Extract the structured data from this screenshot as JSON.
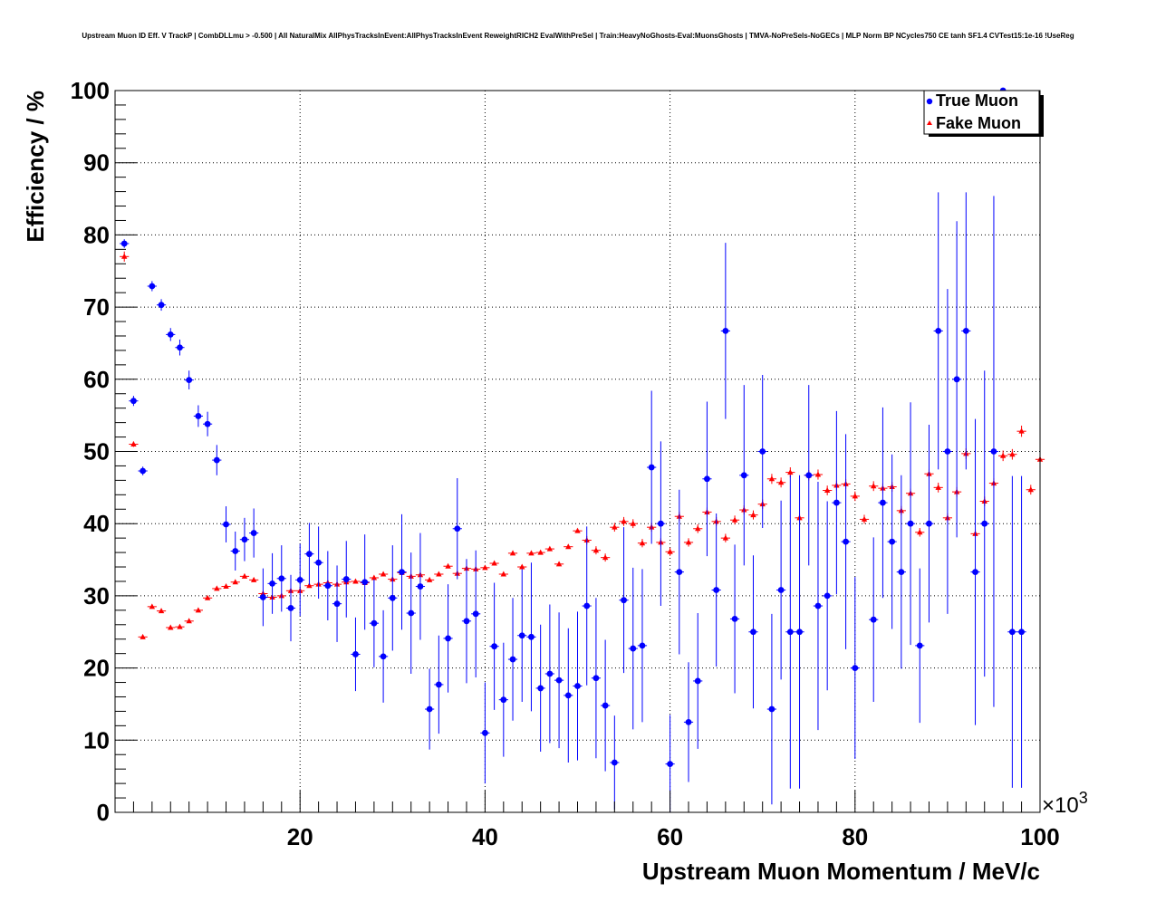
{
  "chart_data": {
    "type": "scatter",
    "title": "Upstream Muon ID Eff. V TrackP | CombDLLmu > -0.500 | All NaturalMix AllPhysTracksInEvent:AllPhysTracksInEvent ReweightRICH2 EvalWithPreSel | Train:HeavyNoGhosts-Eval:MuonsGhosts | TMVA-NoPreSels-NoGECs | MLP Norm BP NCycles750 CE tanh SF1.4 CVTest15:1e-16 !UseReg",
    "xlabel": "Upstream Muon Momentum / MeV/c",
    "ylabel": "Efficiency / %",
    "x_multiplier": "×10",
    "x_multiplier_exp": "3",
    "xlim": [
      0,
      100
    ],
    "ylim": [
      0,
      100
    ],
    "x_ticks": [
      "20",
      "40",
      "60",
      "80",
      "100"
    ],
    "y_ticks": [
      "0",
      "10",
      "20",
      "30",
      "40",
      "50",
      "60",
      "70",
      "80",
      "90",
      "100"
    ],
    "grid": true,
    "legend_position": "top-right",
    "series": [
      {
        "name": "True Muon",
        "color": "#0000ff",
        "marker": "circle",
        "x": [
          1,
          2,
          3,
          4,
          5,
          6,
          7,
          8,
          9,
          10,
          11,
          12,
          13,
          14,
          15,
          16,
          17,
          18,
          19,
          20,
          21,
          22,
          23,
          24,
          25,
          26,
          27,
          28,
          29,
          30,
          31,
          32,
          33,
          34,
          35,
          36,
          37,
          38,
          39,
          40,
          41,
          42,
          43,
          44,
          45,
          46,
          47,
          48,
          49,
          50,
          51,
          52,
          53,
          54,
          55,
          56,
          57,
          58,
          59,
          60,
          61,
          62,
          63,
          64,
          65,
          66,
          67,
          68,
          69,
          70,
          71,
          72,
          73,
          74,
          75,
          76,
          77,
          78,
          79,
          80,
          82,
          83,
          84,
          85,
          86,
          87,
          88,
          89,
          90,
          91,
          92,
          93,
          94,
          95,
          96,
          97,
          98
        ],
        "y": [
          78.8,
          57.0,
          47.3,
          72.9,
          70.3,
          66.2,
          64.4,
          59.9,
          54.9,
          53.8,
          48.8,
          39.9,
          36.2,
          37.8,
          38.7,
          29.8,
          31.7,
          32.4,
          28.3,
          32.2,
          35.8,
          34.6,
          31.4,
          28.9,
          32.3,
          21.9,
          31.9,
          26.2,
          21.6,
          29.7,
          33.3,
          27.6,
          31.3,
          14.3,
          17.7,
          24.1,
          39.3,
          26.5,
          27.5,
          11.0,
          23.0,
          15.6,
          21.2,
          24.5,
          24.3,
          17.2,
          19.2,
          18.3,
          16.2,
          17.5,
          28.6,
          18.6,
          14.8,
          6.9,
          29.4,
          22.7,
          23.1,
          47.8,
          40.0,
          6.7,
          33.3,
          12.5,
          18.2,
          46.2,
          30.8,
          66.7,
          26.8,
          46.7,
          25.0,
          50.0,
          14.3,
          30.8,
          25.0,
          25.0,
          46.7,
          28.6,
          30.0,
          42.9,
          37.5,
          20.0,
          26.7,
          42.9,
          37.5,
          33.3,
          40.0,
          23.1,
          40.0,
          66.7,
          50.0,
          60.0,
          66.7,
          33.3,
          40.0,
          50.0,
          100.0,
          25.0,
          25.0
        ],
        "err": [
          0.6,
          0.7,
          0.6,
          0.7,
          0.8,
          0.9,
          1.1,
          1.3,
          1.5,
          1.7,
          2.1,
          2.5,
          2.7,
          3.0,
          3.4,
          4.0,
          4.2,
          4.6,
          4.6,
          5.0,
          4.3,
          5.0,
          4.8,
          5.3,
          5.3,
          5.1,
          6.6,
          6.1,
          6.4,
          7.3,
          8.0,
          8.4,
          7.4,
          5.6,
          6.8,
          7.5,
          7.0,
          8.6,
          8.8,
          7.0,
          8.8,
          7.9,
          8.5,
          9.2,
          10.3,
          8.8,
          9.6,
          9.4,
          9.3,
          10.3,
          11.0,
          11.1,
          9.1,
          6.5,
          10.1,
          11.2,
          10.6,
          10.6,
          11.4,
          6.8,
          11.4,
          8.3,
          9.4,
          10.7,
          10.6,
          12.2,
          10.3,
          12.5,
          10.6,
          10.6,
          13.2,
          12.4,
          21.7,
          21.7,
          12.5,
          17.2,
          13.1,
          12.7,
          14.9,
          12.6,
          11.4,
          13.2,
          12.1,
          13.4,
          16.8,
          10.7,
          13.7,
          19.2,
          22.5,
          21.9,
          19.2,
          21.2,
          21.2,
          35.4,
          0.2,
          21.6,
          21.6
        ]
      },
      {
        "name": "Fake Muon",
        "color": "#ff0000",
        "marker": "triangle",
        "x": [
          1,
          2,
          3,
          4,
          5,
          6,
          7,
          8,
          9,
          10,
          11,
          12,
          13,
          14,
          15,
          16,
          17,
          18,
          19,
          20,
          21,
          22,
          23,
          24,
          25,
          26,
          27,
          28,
          29,
          30,
          31,
          32,
          33,
          34,
          35,
          36,
          37,
          38,
          39,
          40,
          41,
          42,
          43,
          44,
          45,
          46,
          47,
          48,
          49,
          50,
          51,
          52,
          53,
          54,
          55,
          56,
          57,
          58,
          59,
          60,
          61,
          62,
          63,
          64,
          65,
          66,
          67,
          68,
          69,
          70,
          71,
          72,
          73,
          74,
          75,
          76,
          77,
          78,
          79,
          80,
          81,
          82,
          83,
          84,
          85,
          86,
          87,
          88,
          89,
          90,
          91,
          92,
          93,
          94,
          95,
          96,
          97,
          98,
          99,
          100
        ],
        "y": [
          77.0,
          51.0,
          24.3,
          28.5,
          27.9,
          25.6,
          25.7,
          26.5,
          28.0,
          29.7,
          31.0,
          31.3,
          31.9,
          32.7,
          32.2,
          30.3,
          29.8,
          30.0,
          30.7,
          30.7,
          31.4,
          31.6,
          31.8,
          31.6,
          31.9,
          32.0,
          31.8,
          32.5,
          33.0,
          32.3,
          33.2,
          32.7,
          32.9,
          32.2,
          33.0,
          34.1,
          33.1,
          33.8,
          33.7,
          33.9,
          34.5,
          33.0,
          35.9,
          34.0,
          35.9,
          36.0,
          36.5,
          34.4,
          36.8,
          39.0,
          37.7,
          36.3,
          35.3,
          39.5,
          40.3,
          40.0,
          37.3,
          39.5,
          37.4,
          36.1,
          41.0,
          37.4,
          39.3,
          41.6,
          40.3,
          38.0,
          40.5,
          41.9,
          41.2,
          42.7,
          46.2,
          45.7,
          47.1,
          40.8,
          46.7,
          46.8,
          44.6,
          45.3,
          45.5,
          43.8,
          40.6,
          45.2,
          44.9,
          45.1,
          41.8,
          44.2,
          38.8,
          46.9,
          45.0,
          40.8,
          44.4,
          49.7,
          38.6,
          43.1,
          45.6,
          49.4,
          49.6,
          52.8,
          44.7,
          48.9
        ]
      }
    ]
  }
}
